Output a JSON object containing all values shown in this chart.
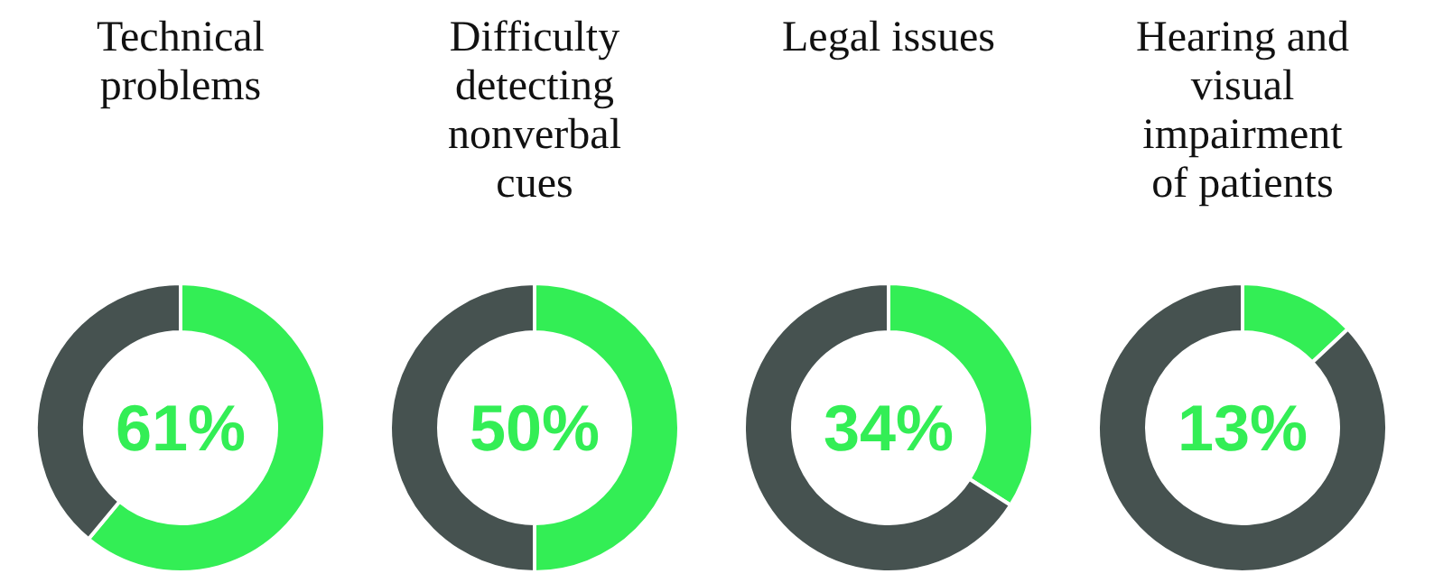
{
  "chart_data": [
    {
      "type": "donut",
      "title": "Technical problems",
      "categories": [
        null,
        null
      ],
      "values": [
        61,
        39
      ],
      "colors": [
        "#33ee55",
        "#465250"
      ],
      "annotations": [
        "61%"
      ]
    },
    {
      "type": "donut",
      "title": "Difficulty detecting nonverbal cues",
      "categories": [
        null,
        null
      ],
      "values": [
        50,
        50
      ],
      "colors": [
        "#33ee55",
        "#465250"
      ],
      "annotations": [
        "50%"
      ]
    },
    {
      "type": "donut",
      "title": "Legal issues",
      "categories": [
        null,
        null
      ],
      "values": [
        34,
        66
      ],
      "colors": [
        "#33ee55",
        "#465250"
      ],
      "annotations": [
        "34%"
      ]
    },
    {
      "type": "donut",
      "title": "Hearing and visual impairment of patients",
      "categories": [
        null,
        null
      ],
      "values": [
        13,
        87
      ],
      "colors": [
        "#33ee55",
        "#465250"
      ],
      "annotations": [
        "13%"
      ]
    }
  ]
}
